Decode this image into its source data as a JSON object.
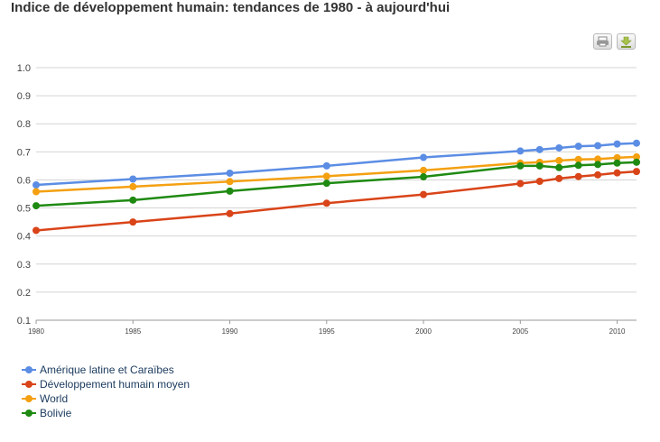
{
  "chart_data": {
    "type": "line",
    "title": "Indice de développement humain: tendances de 1980 - à aujourd'hui",
    "xlabel": "",
    "ylabel": "",
    "x": [
      1980,
      1985,
      1990,
      1995,
      2000,
      2005,
      2006,
      2007,
      2008,
      2009,
      2010,
      2011
    ],
    "xticks": [
      "1980",
      "1985",
      "1990",
      "1995",
      "2000",
      "2005",
      "2010"
    ],
    "yticks": [
      "0.1",
      "0.2",
      "0.3",
      "0.4",
      "0.5",
      "0.6",
      "0.7",
      "0.8",
      "0.9",
      "1.0"
    ],
    "ylim": [
      0.1,
      1.0
    ],
    "xlim": [
      1980,
      2011
    ],
    "grid": true,
    "legend_position": "bottom-left",
    "series": [
      {
        "name": "Amérique latine et Caraïbes",
        "color": "#5b8de4",
        "values": [
          0.582,
          0.603,
          0.624,
          0.65,
          0.68,
          0.703,
          0.708,
          0.714,
          0.72,
          0.722,
          0.728,
          0.731
        ]
      },
      {
        "name": "Développement humain moyen",
        "color": "#d94419",
        "values": [
          0.42,
          0.45,
          0.48,
          0.517,
          0.548,
          0.587,
          0.595,
          0.605,
          0.612,
          0.618,
          0.625,
          0.63
        ]
      },
      {
        "name": "World",
        "color": "#f4a011",
        "values": [
          0.558,
          0.576,
          0.594,
          0.613,
          0.634,
          0.66,
          0.663,
          0.669,
          0.673,
          0.674,
          0.679,
          0.682
        ]
      },
      {
        "name": "Bolivie",
        "color": "#1f8a12",
        "values": [
          0.508,
          0.528,
          0.56,
          0.588,
          0.611,
          0.65,
          0.65,
          0.644,
          0.652,
          0.655,
          0.66,
          0.663
        ]
      }
    ]
  },
  "toolbar": {
    "print_icon": "printer-icon",
    "download_icon": "download-icon"
  }
}
